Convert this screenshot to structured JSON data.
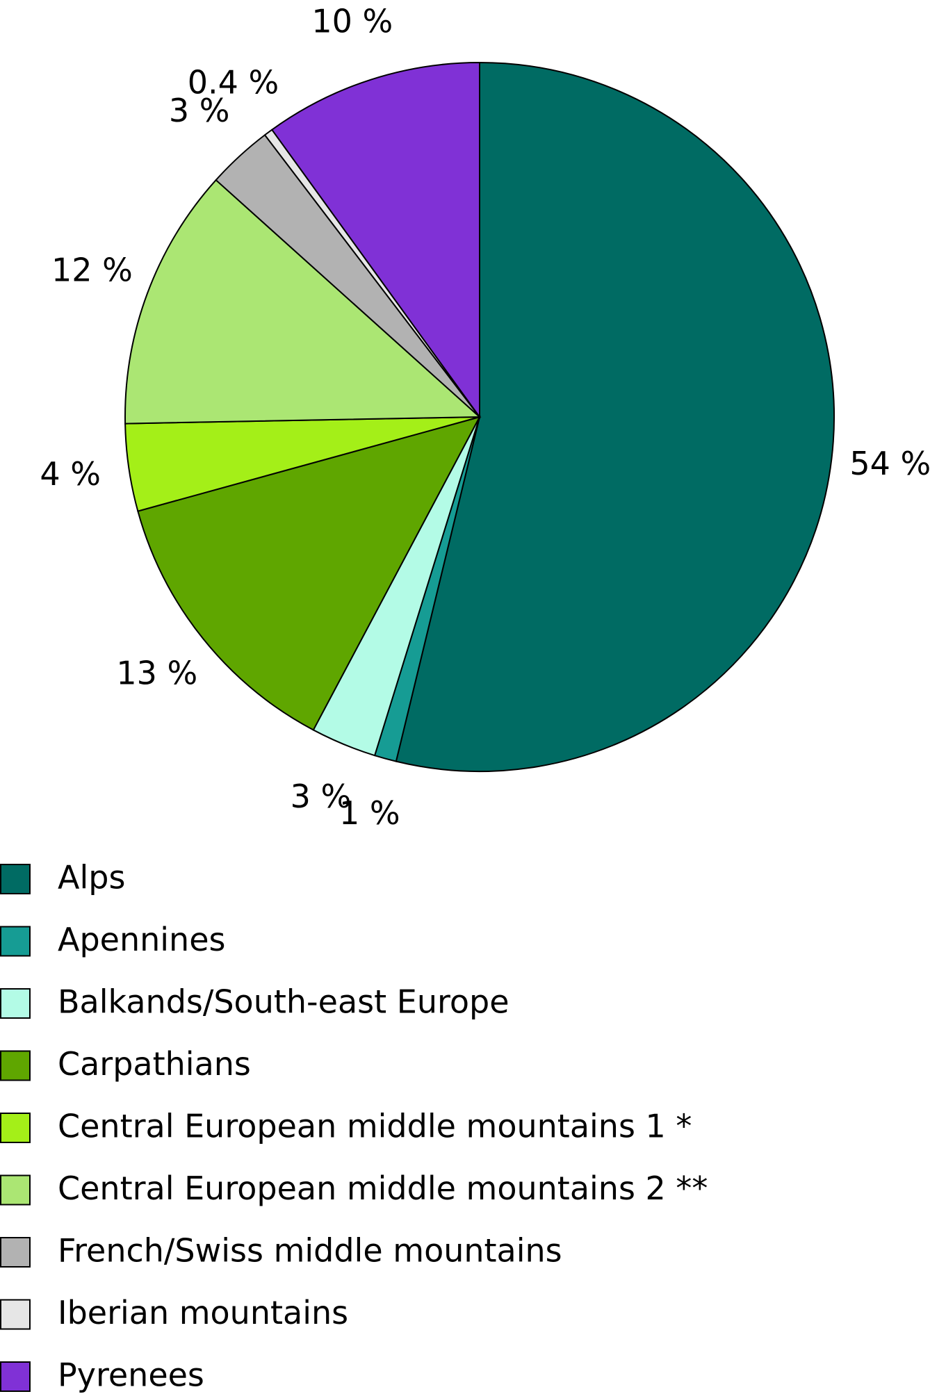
{
  "chart_data": {
    "type": "pie",
    "categories": [
      "Alps",
      "Apennines",
      "Balkands/South-east Europe",
      "Carpathians",
      "Central European middle mountains 1 *",
      "Central European middle mountains 2 **",
      "French/Swiss middle mountains",
      "Iberian mountains",
      "Pyrenees"
    ],
    "values": [
      54,
      1,
      3,
      13,
      4,
      12,
      3,
      0.4,
      10
    ],
    "value_labels": [
      "54 %",
      "1 %",
      "3 %",
      "13 %",
      "4 %",
      "12 %",
      "3 %",
      "0.4 %",
      "10 %"
    ],
    "colors": [
      "#006b63",
      "#169c94",
      "#b3fbe6",
      "#5fa600",
      "#a4ef18",
      "#abe673",
      "#b2b2b2",
      "#e6e6e6",
      "#8031d6"
    ]
  }
}
